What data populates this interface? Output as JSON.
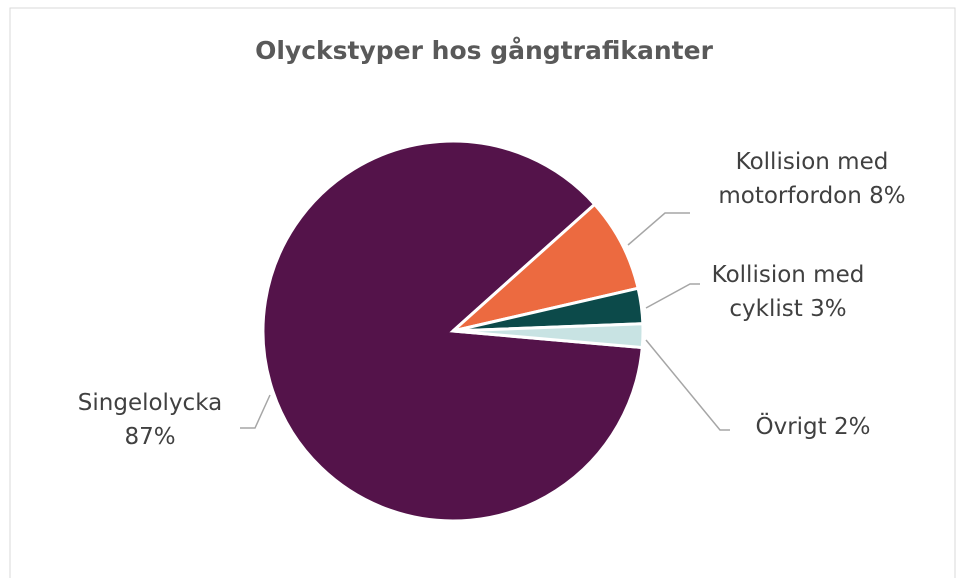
{
  "chart_data": {
    "type": "pie",
    "title": "Olyckstyper hos gångtrafikanter",
    "categories": [
      "Singelolycka",
      "Kollision med motorfordon",
      "Kollision med cyklist",
      "Övrigt"
    ],
    "values": [
      87,
      8,
      3,
      2
    ],
    "value_labels": [
      "87%",
      "8%",
      "3%",
      "2%"
    ],
    "colors": [
      "#54134a",
      "#ec6a40",
      "#0c4a4a",
      "#c8e3e3"
    ]
  }
}
